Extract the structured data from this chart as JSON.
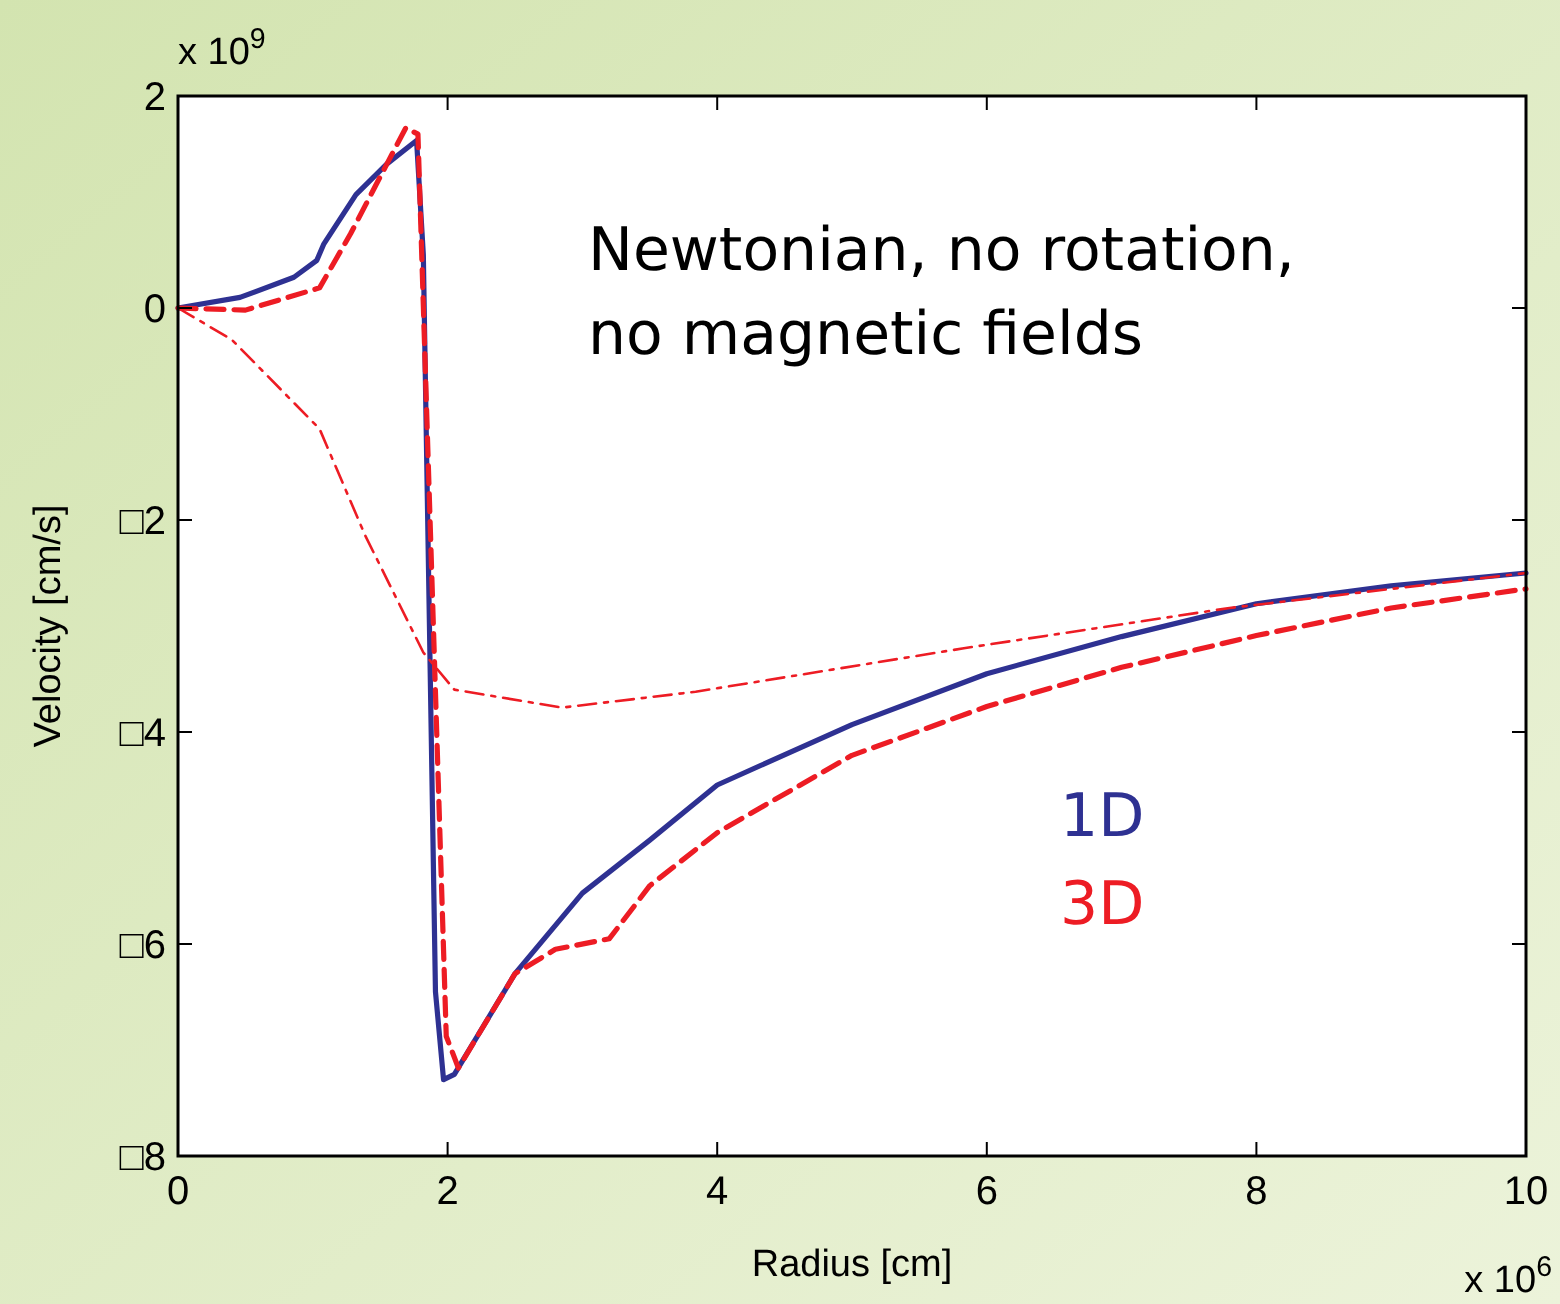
{
  "chart_data": {
    "type": "line",
    "xlabel": "Radius [cm]",
    "ylabel": "Velocity [cm/s]",
    "annotations": [
      "Newtonian, no rotation, no magnetic fields",
      "x 10$^{9}$",
      "x 10$^{6}$"
    ],
    "xlim": [
      0,
      10
    ],
    "xticks": [
      0,
      2,
      4,
      6,
      8,
      10
    ],
    "ylim": [
      -8,
      2
    ],
    "yticks": [
      {
        "value": -8,
        "label": "□8"
      },
      {
        "value": -6,
        "label": "□6"
      },
      {
        "value": -4,
        "label": "□4"
      },
      {
        "value": -2,
        "label": "□2"
      },
      0,
      2
    ],
    "grid": false,
    "legend": false,
    "series": [
      {
        "name": "1D",
        "color": "#2e3192",
        "line_style": "solid",
        "x": [
          0,
          0.46,
          0.86,
          1.03,
          1.08,
          1.32,
          1.55,
          1.77,
          1.82,
          1.91,
          1.97,
          2.05,
          2.5,
          3,
          3.5,
          4,
          5,
          6,
          7,
          8,
          9,
          10
        ],
        "values": [
          0,
          0.1,
          0.29,
          0.45,
          0.6,
          1.07,
          1.36,
          1.58,
          0.5,
          -6.45,
          -7.28,
          -7.23,
          -6.28,
          -5.52,
          -5.02,
          -4.5,
          -3.93,
          -3.45,
          -3.1,
          -2.79,
          -2.62,
          -2.5
        ]
      },
      {
        "name": "3D",
        "color": "#ed1c24",
        "line_style": "dashed",
        "x": [
          0,
          0.5,
          1.05,
          1.28,
          1.55,
          1.69,
          1.78,
          1.99,
          2.08,
          2.5,
          2.8,
          3.2,
          3.5,
          4,
          5,
          6,
          7,
          8,
          9,
          10
        ],
        "values": [
          0,
          -0.02,
          0.19,
          0.7,
          1.36,
          1.7,
          1.64,
          -6.87,
          -7.17,
          -6.28,
          -6.05,
          -5.95,
          -5.45,
          -4.95,
          -4.22,
          -3.76,
          -3.39,
          -3.09,
          -2.83,
          -2.65
        ]
      },
      {
        "color": "#ed1c24",
        "line_style": "dashdot",
        "x": [
          0,
          0.4,
          1.05,
          1.39,
          1.82,
          2.05,
          2.85,
          3.84,
          5.83,
          7.8,
          10
        ],
        "values": [
          0,
          -0.3,
          -1.14,
          -2.15,
          -3.25,
          -3.6,
          -3.77,
          -3.62,
          -3.21,
          -2.83,
          -2.5
        ]
      }
    ]
  }
}
